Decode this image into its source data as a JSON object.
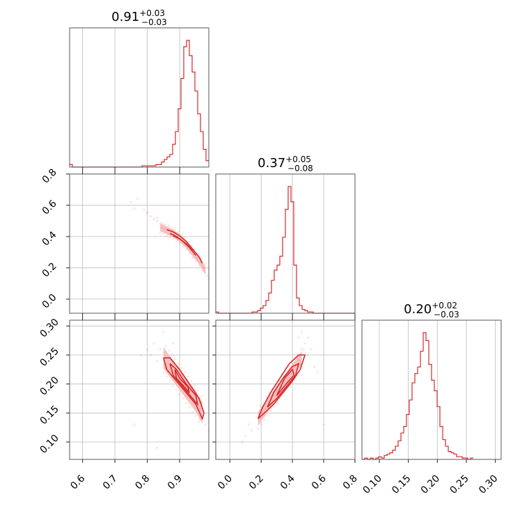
{
  "chart_data": {
    "type": "corner",
    "color": "#d62728",
    "parameters": [
      {
        "title": {
          "median": "0.91",
          "plus": "+0.03",
          "minus": "−0.03"
        },
        "range": [
          0.56,
          0.99
        ],
        "ticks": [
          0.6,
          0.7,
          0.8,
          0.9
        ],
        "tick_labels": [
          "0.6",
          "0.7",
          "0.8",
          "0.9"
        ],
        "hist_edges_start": 0.56,
        "hist_bin_width": 0.0086,
        "hist_counts": [
          2,
          0,
          0,
          0,
          0,
          0,
          0,
          0,
          0,
          0,
          0,
          0,
          0,
          0,
          0,
          0,
          0,
          0,
          0,
          0,
          0,
          0,
          0,
          0,
          0,
          0,
          1,
          1,
          1,
          1,
          1,
          2,
          2,
          4,
          6,
          8,
          10,
          18,
          28,
          46,
          70,
          95,
          100,
          88,
          75,
          60,
          42,
          28,
          14,
          5
        ]
      },
      {
        "title": {
          "median": "0.37",
          "plus": "+0.05",
          "minus": "−0.08"
        },
        "range": [
          -0.09,
          0.8
        ],
        "ticks": [
          0.0,
          0.2,
          0.4,
          0.6,
          0.8
        ],
        "tick_labels": [
          "0.0",
          "0.2",
          "0.4",
          "0.6",
          "0.8"
        ],
        "y_ticks": [
          0.0,
          0.2,
          0.4,
          0.6,
          0.8
        ],
        "y_tick_labels": [
          "0.0",
          "0.2",
          "0.4",
          "0.6",
          "0.8"
        ],
        "hist_edges_start": -0.09,
        "hist_bin_width": 0.0178,
        "hist_counts": [
          1,
          0,
          0,
          0,
          0,
          0,
          0,
          0,
          0,
          0,
          0,
          0,
          0,
          1,
          1,
          2,
          4,
          6,
          10,
          16,
          26,
          34,
          38,
          45,
          60,
          82,
          100,
          88,
          38,
          12,
          6,
          3,
          2,
          1,
          1,
          0,
          0,
          0,
          0,
          0,
          0,
          0,
          0,
          0,
          0,
          0,
          0,
          0,
          0,
          0
        ]
      },
      {
        "title": {
          "median": "0.20",
          "plus": "+0.02",
          "minus": "−0.03"
        },
        "range": [
          0.07,
          0.31
        ],
        "ticks": [
          0.1,
          0.15,
          0.2,
          0.25,
          0.3
        ],
        "tick_labels": [
          "0.10",
          "0.15",
          "0.20",
          "0.25",
          "0.30"
        ],
        "y_ticks": [
          0.1,
          0.15,
          0.2,
          0.25,
          0.3
        ],
        "y_tick_labels": [
          "0.10",
          "0.15",
          "0.20",
          "0.25",
          "0.30"
        ],
        "hist_edges_start": 0.07,
        "hist_bin_width": 0.0048,
        "hist_counts": [
          0,
          1,
          0,
          1,
          0,
          1,
          2,
          1,
          3,
          4,
          5,
          7,
          10,
          14,
          20,
          25,
          34,
          45,
          58,
          65,
          70,
          82,
          96,
          90,
          72,
          60,
          52,
          40,
          25,
          15,
          10,
          6,
          5,
          4,
          2,
          2,
          1,
          1,
          0,
          1
        ]
      }
    ],
    "panels_2d": [
      {
        "x_param": 0,
        "y_param": 1,
        "ridge": [
          [
            0.84,
            0.46
          ],
          [
            0.86,
            0.44
          ],
          [
            0.88,
            0.42
          ],
          [
            0.9,
            0.39
          ],
          [
            0.92,
            0.35
          ],
          [
            0.94,
            0.3
          ],
          [
            0.96,
            0.25
          ],
          [
            0.98,
            0.18
          ]
        ],
        "half_width": 0.025,
        "scatter": [
          [
            0.75,
            0.62
          ],
          [
            0.76,
            0.58
          ],
          [
            0.77,
            0.64
          ],
          [
            0.79,
            0.57
          ],
          [
            0.8,
            0.55
          ],
          [
            0.81,
            0.53
          ],
          [
            0.82,
            0.51
          ],
          [
            0.83,
            0.5
          ],
          [
            0.84,
            0.48
          ],
          [
            0.85,
            0.47
          ],
          [
            0.985,
            0.15
          ],
          [
            0.99,
            0.13
          ],
          [
            0.975,
            0.19
          ],
          [
            0.83,
            0.52
          ],
          [
            0.8,
            0.56
          ]
        ],
        "contours": [
          [
            [
              0.86,
              0.445
            ],
            [
              0.88,
              0.43
            ],
            [
              0.9,
              0.405
            ],
            [
              0.92,
              0.37
            ],
            [
              0.94,
              0.32
            ],
            [
              0.96,
              0.27
            ],
            [
              0.97,
              0.23
            ]
          ],
          [
            [
              0.87,
              0.42
            ],
            [
              0.89,
              0.4
            ],
            [
              0.91,
              0.37
            ],
            [
              0.93,
              0.33
            ],
            [
              0.95,
              0.28
            ]
          ],
          [
            [
              0.88,
              0.405
            ],
            [
              0.9,
              0.385
            ],
            [
              0.92,
              0.355
            ],
            [
              0.94,
              0.31
            ]
          ]
        ]
      },
      {
        "x_param": 0,
        "y_param": 2,
        "ridge": [
          [
            0.85,
            0.245
          ],
          [
            0.87,
            0.23
          ],
          [
            0.89,
            0.215
          ],
          [
            0.91,
            0.2
          ],
          [
            0.93,
            0.185
          ],
          [
            0.95,
            0.17
          ],
          [
            0.97,
            0.15
          ]
        ],
        "half_width": 0.018,
        "scatter": [
          [
            0.8,
            0.26
          ],
          [
            0.81,
            0.25
          ],
          [
            0.82,
            0.27
          ],
          [
            0.83,
            0.24
          ],
          [
            0.84,
            0.26
          ],
          [
            0.78,
            0.25
          ],
          [
            0.85,
            0.29
          ],
          [
            0.88,
            0.27
          ],
          [
            0.76,
            0.13
          ],
          [
            0.83,
            0.09
          ],
          [
            0.99,
            0.12
          ],
          [
            0.98,
            0.13
          ],
          [
            0.86,
            0.22
          ],
          [
            0.96,
            0.14
          ]
        ],
        "contours": [
          [
            [
              0.85,
              0.245
            ],
            [
              0.86,
              0.225
            ],
            [
              0.89,
              0.205
            ],
            [
              0.92,
              0.185
            ],
            [
              0.95,
              0.165
            ],
            [
              0.97,
              0.14
            ],
            [
              0.975,
              0.15
            ],
            [
              0.96,
              0.175
            ],
            [
              0.93,
              0.2
            ],
            [
              0.9,
              0.225
            ],
            [
              0.87,
              0.245
            ],
            [
              0.85,
              0.245
            ]
          ],
          [
            [
              0.87,
              0.235
            ],
            [
              0.88,
              0.215
            ],
            [
              0.91,
              0.195
            ],
            [
              0.94,
              0.175
            ],
            [
              0.955,
              0.165
            ],
            [
              0.95,
              0.18
            ],
            [
              0.92,
              0.2
            ],
            [
              0.89,
              0.225
            ],
            [
              0.87,
              0.235
            ]
          ],
          [
            [
              0.885,
              0.225
            ],
            [
              0.89,
              0.21
            ],
            [
              0.915,
              0.195
            ],
            [
              0.93,
              0.185
            ],
            [
              0.925,
              0.195
            ],
            [
              0.9,
              0.21
            ],
            [
              0.885,
              0.225
            ]
          ]
        ]
      },
      {
        "x_param": 1,
        "y_param": 2,
        "ridge": [
          [
            0.18,
            0.14
          ],
          [
            0.22,
            0.155
          ],
          [
            0.26,
            0.17
          ],
          [
            0.3,
            0.185
          ],
          [
            0.34,
            0.2
          ],
          [
            0.38,
            0.215
          ],
          [
            0.42,
            0.23
          ],
          [
            0.46,
            0.245
          ]
        ],
        "half_width": 0.012,
        "scatter": [
          [
            0.5,
            0.28
          ],
          [
            0.48,
            0.27
          ],
          [
            0.52,
            0.26
          ],
          [
            0.46,
            0.29
          ],
          [
            0.54,
            0.23
          ],
          [
            0.56,
            0.22
          ],
          [
            0.44,
            0.28
          ],
          [
            0.1,
            0.11
          ],
          [
            0.08,
            0.1
          ],
          [
            0.14,
            0.12
          ],
          [
            0.6,
            0.13
          ],
          [
            0.12,
            0.13
          ],
          [
            0.5,
            0.25
          ],
          [
            0.47,
            0.26
          ]
        ],
        "contours": [
          [
            [
              0.18,
              0.14
            ],
            [
              0.22,
              0.15
            ],
            [
              0.28,
              0.165
            ],
            [
              0.34,
              0.185
            ],
            [
              0.4,
              0.205
            ],
            [
              0.45,
              0.225
            ],
            [
              0.48,
              0.25
            ],
            [
              0.44,
              0.25
            ],
            [
              0.38,
              0.235
            ],
            [
              0.32,
              0.21
            ],
            [
              0.26,
              0.185
            ],
            [
              0.21,
              0.16
            ],
            [
              0.18,
              0.14
            ]
          ],
          [
            [
              0.24,
              0.16
            ],
            [
              0.3,
              0.175
            ],
            [
              0.36,
              0.195
            ],
            [
              0.42,
              0.215
            ],
            [
              0.44,
              0.235
            ],
            [
              0.4,
              0.23
            ],
            [
              0.34,
              0.21
            ],
            [
              0.28,
              0.185
            ],
            [
              0.24,
              0.16
            ]
          ],
          [
            [
              0.3,
              0.18
            ],
            [
              0.36,
              0.2
            ],
            [
              0.41,
              0.215
            ],
            [
              0.4,
              0.225
            ],
            [
              0.35,
              0.21
            ],
            [
              0.3,
              0.18
            ]
          ]
        ]
      }
    ]
  }
}
